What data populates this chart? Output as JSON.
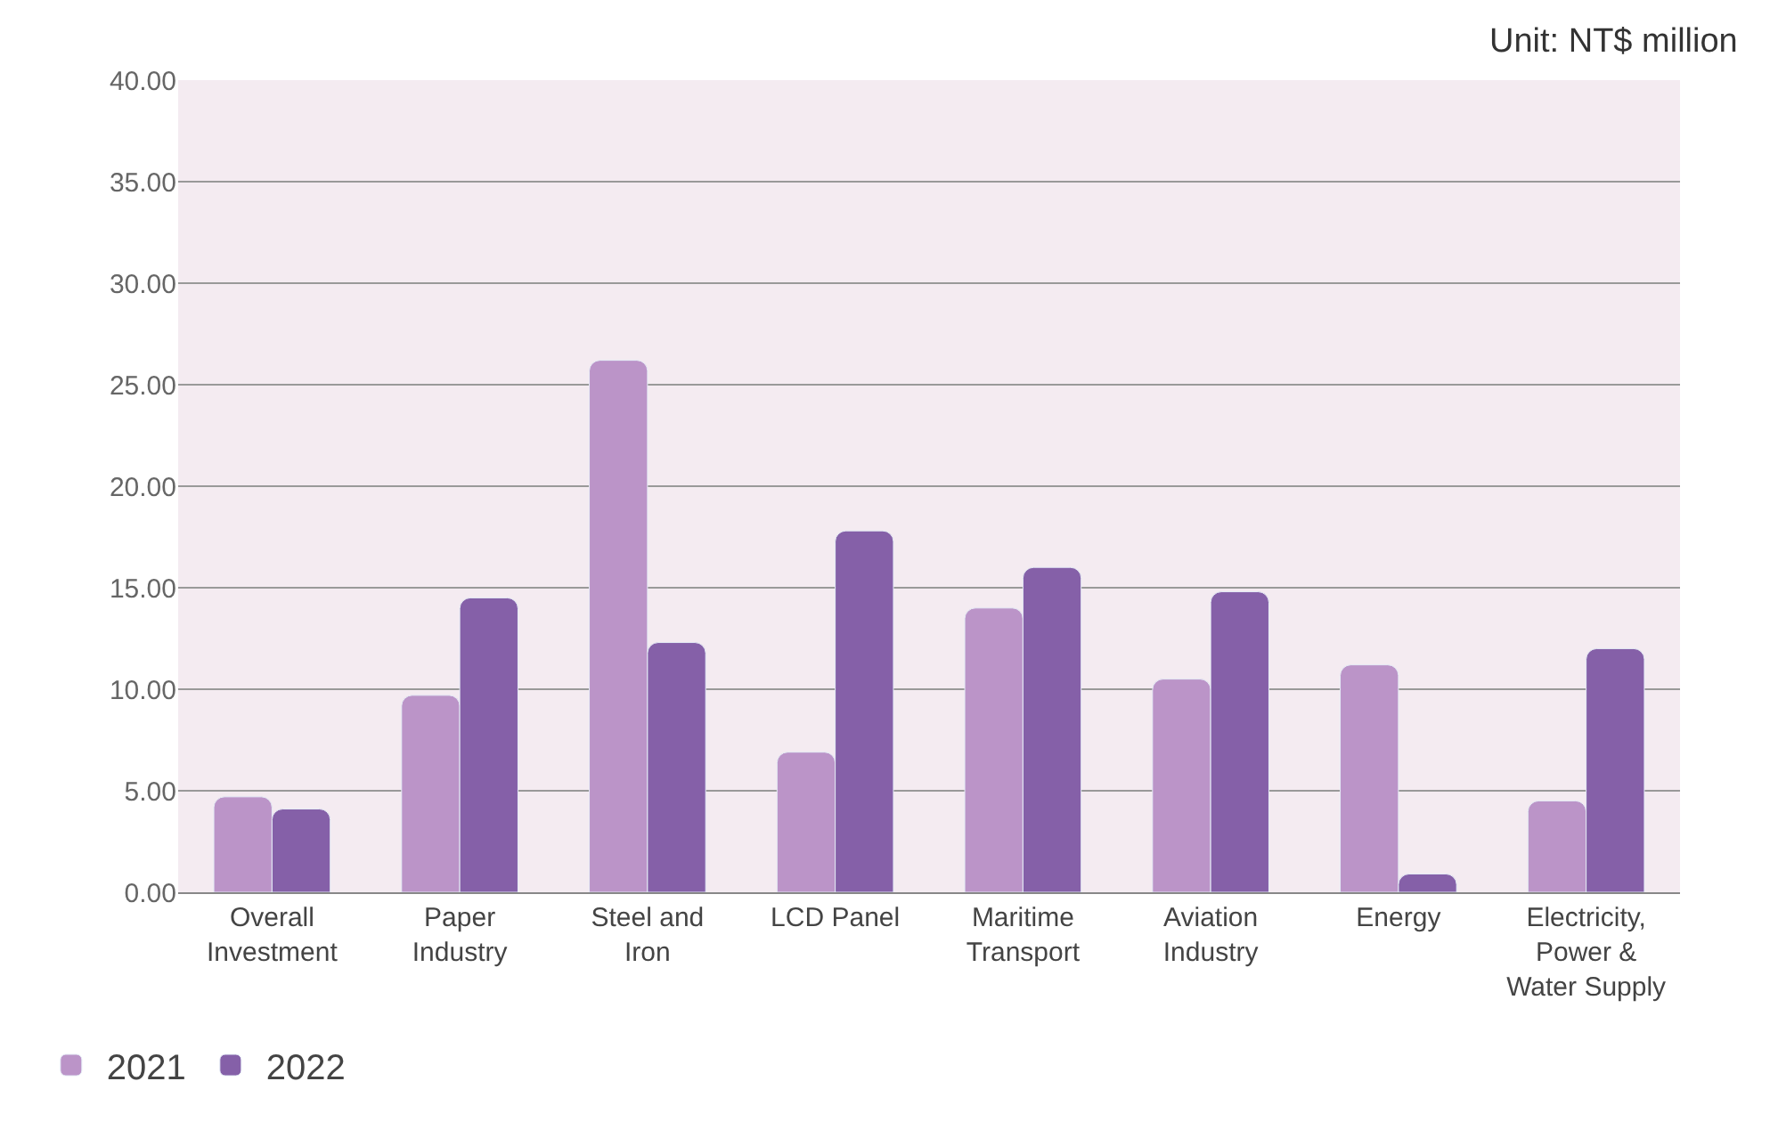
{
  "chart_data": {
    "type": "bar",
    "annotations": [
      "Unit: NT$ million"
    ],
    "categories": [
      "Overall\nInvestment",
      "Paper\nIndustry",
      "Steel and\nIron",
      "LCD Panel",
      "Maritime\nTransport",
      "Aviation\nIndustry",
      "Energy",
      "Electricity,\nPower &\nWater Supply"
    ],
    "series": [
      {
        "name": "2021",
        "color": "#bb94c8",
        "values": [
          4.7,
          9.7,
          26.2,
          6.9,
          14.0,
          10.5,
          11.2,
          4.5
        ]
      },
      {
        "name": "2022",
        "color": "#8560a8",
        "values": [
          4.1,
          14.5,
          12.3,
          17.8,
          16.0,
          14.8,
          0.9,
          12.0
        ]
      }
    ],
    "ylim": [
      0,
      40
    ],
    "yticks": [
      {
        "value": 0,
        "label": "0.00"
      },
      {
        "value": 5,
        "label": "5.00"
      },
      {
        "value": 10,
        "label": "10.00"
      },
      {
        "value": 15,
        "label": "15.00"
      },
      {
        "value": 20,
        "label": "20.00"
      },
      {
        "value": 25,
        "label": "25.00"
      },
      {
        "value": 30,
        "label": "30.00"
      },
      {
        "value": 35,
        "label": "35.00"
      },
      {
        "value": 40,
        "label": "40.00"
      }
    ],
    "grid": "y",
    "legend": "bottom left"
  }
}
